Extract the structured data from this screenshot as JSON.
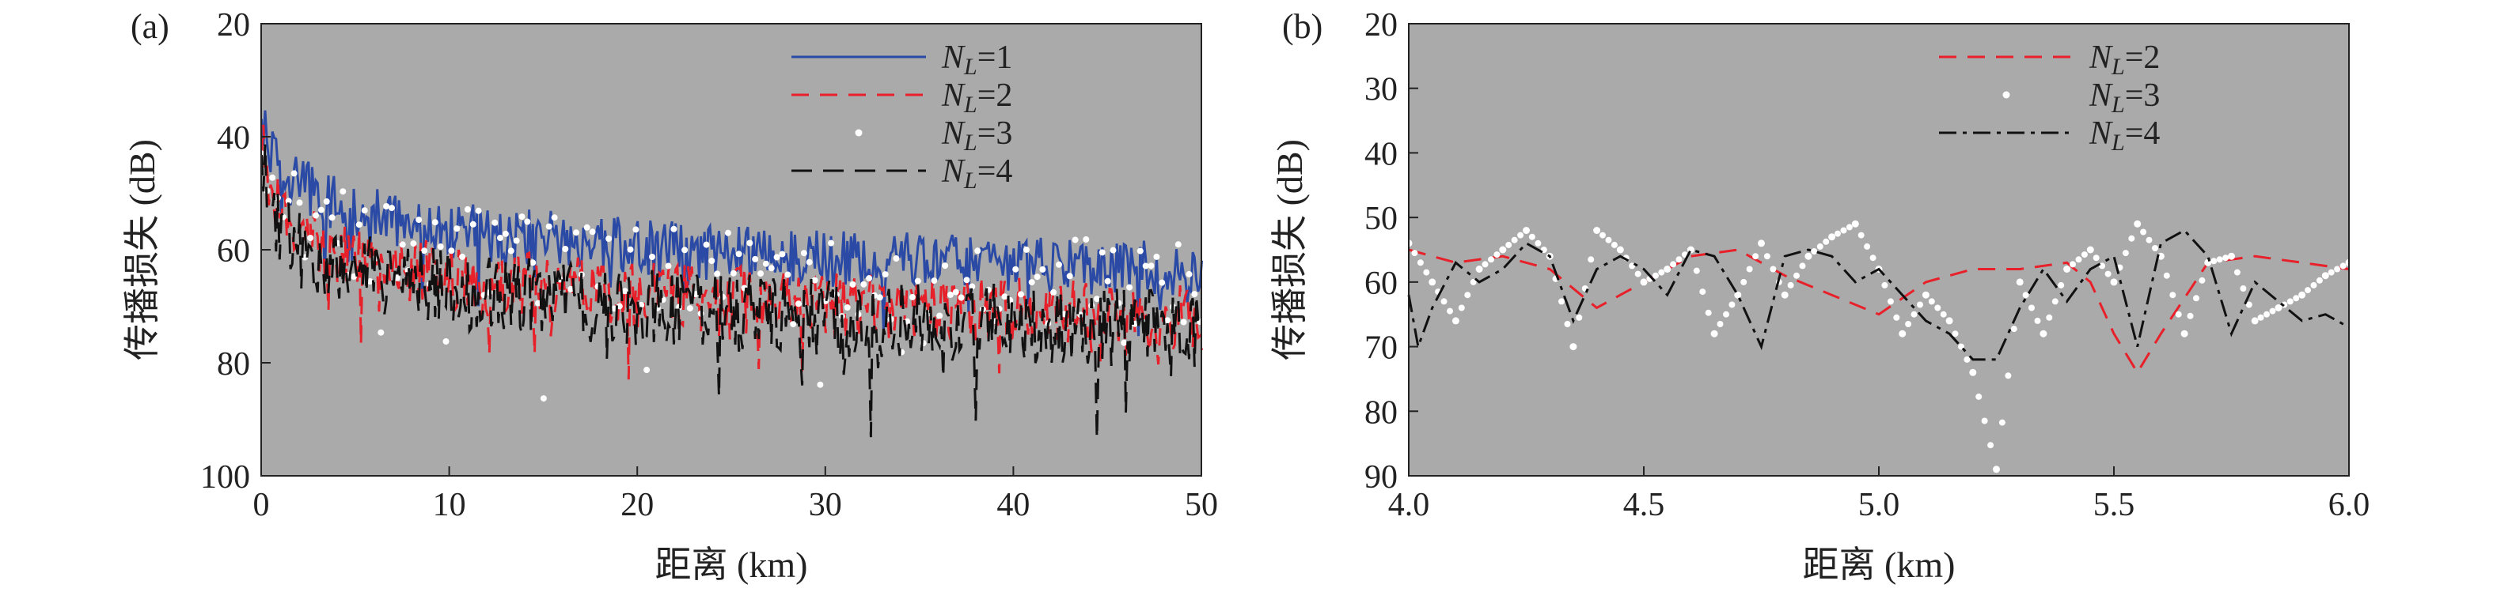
{
  "colors": {
    "plot_background": "#aaaaaa",
    "series_nl1": "#2a4aa6",
    "series_nl2": "#e8202a",
    "series_nl3": "#ffffff",
    "series_nl4": "#111111",
    "axis": "#222222"
  },
  "chart_data": [
    {
      "type": "line",
      "panel_label": "(a)",
      "xlabel": "距离 (km)",
      "ylabel": "传播损失 (dB)",
      "xlim": [
        0,
        50
      ],
      "ylim": [
        100,
        20
      ],
      "y_inverted": true,
      "x_ticks": [
        0,
        10,
        20,
        30,
        40,
        50
      ],
      "y_ticks": [
        20,
        40,
        60,
        80,
        100
      ],
      "grid": false,
      "legend_position": "top-right",
      "series": [
        {
          "name_main": "N",
          "name_sub": "L",
          "name_suffix": "=1",
          "style": "solid",
          "color": "#2a4aa6",
          "trend_x": [
            0.1,
            0.5,
            1,
            2,
            5,
            10,
            20,
            30,
            40,
            50
          ],
          "trend_y": [
            33,
            40,
            44,
            47,
            52,
            55,
            58,
            60,
            61,
            62
          ],
          "fluctuation_db": 5
        },
        {
          "name_main": "N",
          "name_sub": "L",
          "name_suffix": "=2",
          "style": "dashed",
          "color": "#e8202a",
          "trend_x": [
            0.1,
            0.5,
            1,
            2,
            5,
            10,
            20,
            30,
            40,
            50
          ],
          "trend_y": [
            40,
            48,
            52,
            56,
            60,
            63,
            66,
            68,
            69,
            70
          ],
          "fluctuation_db": 6
        },
        {
          "name_main": "N",
          "name_sub": "L",
          "name_suffix": "=3",
          "style": "dots",
          "color": "#ffffff",
          "trend_x": [
            0.1,
            0.5,
            1,
            2,
            5,
            10,
            20,
            30,
            40,
            50
          ],
          "trend_y": [
            40,
            46,
            49,
            52,
            56,
            58,
            61,
            62,
            63,
            64
          ],
          "fluctuation_db": 8
        },
        {
          "name_main": "N",
          "name_sub": "L",
          "name_suffix": "=4",
          "style": "longdash",
          "color": "#111111",
          "trend_x": [
            0.1,
            0.5,
            1,
            2,
            5,
            10,
            20,
            30,
            40,
            50
          ],
          "trend_y": [
            42,
            50,
            54,
            58,
            62,
            65,
            68,
            70,
            71,
            72
          ],
          "fluctuation_db": 7
        }
      ]
    },
    {
      "type": "line",
      "panel_label": "(b)",
      "xlabel": "距离 (km)",
      "ylabel": "传播损失 (dB)",
      "xlim": [
        4.0,
        6.0
      ],
      "ylim": [
        90,
        20
      ],
      "y_inverted": true,
      "x_ticks": [
        4.0,
        4.5,
        5.0,
        5.5,
        6.0
      ],
      "y_ticks": [
        20,
        30,
        40,
        50,
        60,
        70,
        80,
        90
      ],
      "grid": false,
      "legend_position": "top-right",
      "series": [
        {
          "name_main": "N",
          "name_sub": "L",
          "name_suffix": "=2",
          "style": "dashed",
          "color": "#e8202a",
          "x": [
            4.0,
            4.1,
            4.2,
            4.3,
            4.4,
            4.5,
            4.6,
            4.7,
            4.8,
            4.9,
            5.0,
            5.1,
            5.2,
            5.3,
            5.4,
            5.45,
            5.5,
            5.55,
            5.6,
            5.7,
            5.8,
            5.9,
            6.0
          ],
          "y": [
            55,
            57,
            56,
            58,
            64,
            60,
            56,
            55,
            59,
            62,
            65,
            60,
            58,
            58,
            57,
            60,
            68,
            74,
            68,
            57,
            56,
            57,
            58
          ]
        },
        {
          "name_main": "N",
          "name_sub": "L",
          "name_suffix": "=3",
          "style": "dots",
          "color": "#ffffff",
          "x": [
            4.0,
            4.05,
            4.1,
            4.15,
            4.2,
            4.25,
            4.3,
            4.35,
            4.4,
            4.45,
            4.5,
            4.55,
            4.6,
            4.65,
            4.7,
            4.75,
            4.8,
            4.85,
            4.9,
            4.95,
            5.0,
            5.05,
            5.1,
            5.15,
            5.2,
            5.25,
            5.3,
            5.35,
            5.4,
            5.45,
            5.5,
            5.55,
            5.6,
            5.65,
            5.7,
            5.75,
            5.8,
            5.85,
            5.9,
            5.95,
            6.0
          ],
          "y": [
            54,
            60,
            66,
            58,
            55,
            52,
            56,
            70,
            52,
            55,
            60,
            58,
            55,
            68,
            62,
            54,
            62,
            56,
            53,
            51,
            58,
            68,
            62,
            66,
            74,
            89,
            60,
            68,
            58,
            55,
            60,
            51,
            56,
            68,
            57,
            56,
            66,
            64,
            62,
            59,
            57
          ]
        },
        {
          "name_main": "N",
          "name_sub": "L",
          "name_suffix": "=4",
          "style": "dashdot",
          "color": "#111111",
          "x": [
            4.0,
            4.02,
            4.05,
            4.1,
            4.15,
            4.2,
            4.25,
            4.3,
            4.35,
            4.4,
            4.45,
            4.5,
            4.55,
            4.6,
            4.65,
            4.7,
            4.75,
            4.8,
            4.85,
            4.9,
            4.95,
            5.0,
            5.05,
            5.1,
            5.15,
            5.2,
            5.25,
            5.3,
            5.35,
            5.4,
            5.45,
            5.5,
            5.55,
            5.6,
            5.65,
            5.7,
            5.75,
            5.8,
            5.85,
            5.9,
            5.95,
            6.0
          ],
          "y": [
            62,
            70,
            64,
            57,
            60,
            58,
            54,
            56,
            66,
            58,
            56,
            58,
            62,
            55,
            56,
            62,
            70,
            56,
            55,
            56,
            60,
            58,
            62,
            66,
            68,
            72,
            72,
            64,
            58,
            63,
            58,
            56,
            70,
            54,
            52,
            56,
            68,
            60,
            63,
            66,
            65,
            67
          ]
        }
      ]
    }
  ]
}
